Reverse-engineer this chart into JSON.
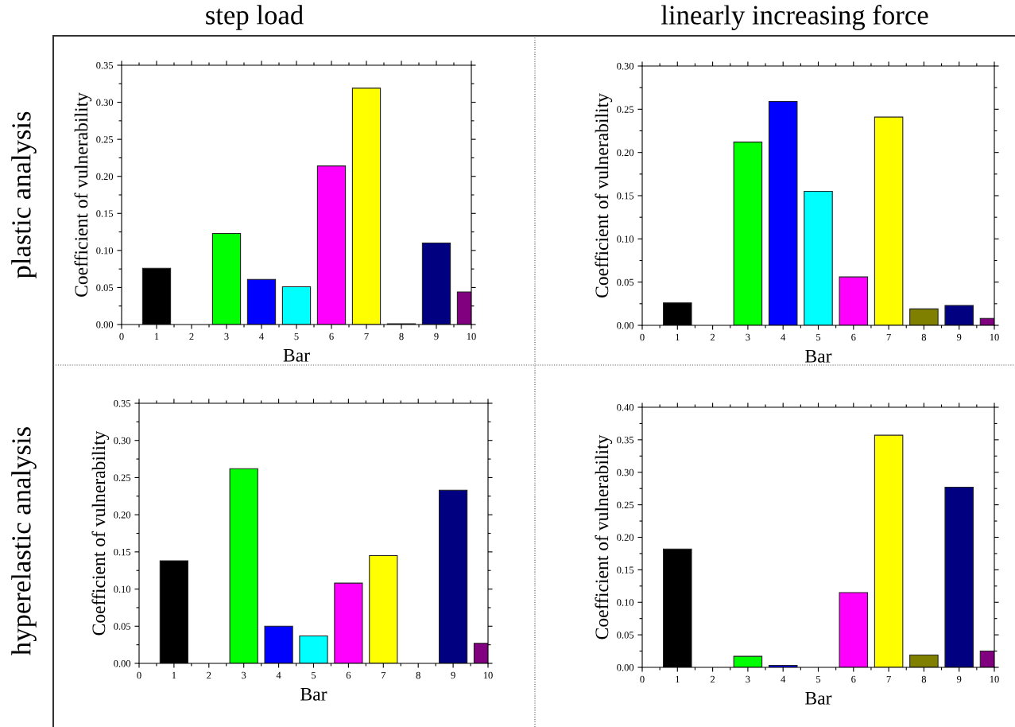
{
  "chart_data": [
    {
      "type": "bar",
      "title": "step load",
      "annotations": [
        "plastic analysis"
      ],
      "xlabel": "Bar",
      "ylabel": "Coefficient of vulnerability",
      "x": [
        1,
        2,
        3,
        4,
        5,
        6,
        7,
        8,
        9,
        10
      ],
      "values": [
        0.076,
        null,
        0.123,
        0.061,
        0.051,
        0.214,
        0.319,
        0.001,
        0.11,
        0.044
      ],
      "colors": [
        "#000000",
        "#ff0000",
        "#00ff00",
        "#0000ff",
        "#00ffff",
        "#ff00ff",
        "#ffff00",
        "#808000",
        "#000080",
        "#800080"
      ],
      "xlim": [
        0,
        10
      ],
      "xticks": [
        0,
        1,
        2,
        3,
        4,
        5,
        6,
        7,
        8,
        9,
        10
      ],
      "ylim": [
        0,
        0.35
      ],
      "yticks": [
        {
          "value": 0,
          "label": "0.00"
        },
        {
          "value": 0.05,
          "label": "0.05"
        },
        {
          "value": 0.1,
          "label": "0.10"
        },
        {
          "value": 0.15,
          "label": "0.15"
        },
        {
          "value": 0.2,
          "label": "0.20"
        },
        {
          "value": 0.25,
          "label": "0.25"
        },
        {
          "value": 0.3,
          "label": "0.30"
        },
        {
          "value": 0.35,
          "label": "0.35"
        }
      ],
      "grid": false,
      "legend": false
    },
    {
      "type": "bar",
      "title": "linearly increasing force",
      "xlabel": "Bar",
      "ylabel": "Coefficient of vulnerability",
      "x": [
        1,
        2,
        3,
        4,
        5,
        6,
        7,
        8,
        9,
        10
      ],
      "values": [
        0.026,
        null,
        0.212,
        0.259,
        0.155,
        0.056,
        0.241,
        0.019,
        0.023,
        0.008
      ],
      "colors": [
        "#000000",
        "#ff0000",
        "#00ff00",
        "#0000ff",
        "#00ffff",
        "#ff00ff",
        "#ffff00",
        "#808000",
        "#000080",
        "#800080"
      ],
      "xlim": [
        0,
        10
      ],
      "xticks": [
        0,
        1,
        2,
        3,
        4,
        5,
        6,
        7,
        8,
        9,
        10
      ],
      "ylim": [
        0,
        0.3
      ],
      "yticks": [
        {
          "value": 0,
          "label": "0.00"
        },
        {
          "value": 0.05,
          "label": "0.05"
        },
        {
          "value": 0.1,
          "label": "0.10"
        },
        {
          "value": 0.15,
          "label": "0.15"
        },
        {
          "value": 0.2,
          "label": "0.20"
        },
        {
          "value": 0.25,
          "label": "0.25"
        },
        {
          "value": 0.3,
          "label": "0.30"
        }
      ],
      "grid": false,
      "legend": false
    },
    {
      "type": "bar",
      "annotations": [
        "hyperelastic analysis"
      ],
      "xlabel": "Bar",
      "ylabel": "Coefficient of vulnerability",
      "x": [
        1,
        2,
        3,
        4,
        5,
        6,
        7,
        8,
        9,
        10
      ],
      "values": [
        0.138,
        null,
        0.262,
        0.05,
        0.037,
        0.108,
        0.145,
        null,
        0.233,
        0.027
      ],
      "colors": [
        "#000000",
        "#ff0000",
        "#00ff00",
        "#0000ff",
        "#00ffff",
        "#ff00ff",
        "#ffff00",
        "#808000",
        "#000080",
        "#800080"
      ],
      "xlim": [
        0,
        10
      ],
      "xticks": [
        0,
        1,
        2,
        3,
        4,
        5,
        6,
        7,
        8,
        9,
        10
      ],
      "ylim": [
        0,
        0.35
      ],
      "yticks": [
        {
          "value": 0,
          "label": "0.00"
        },
        {
          "value": 0.05,
          "label": "0.05"
        },
        {
          "value": 0.1,
          "label": "0.10"
        },
        {
          "value": 0.15,
          "label": "0.15"
        },
        {
          "value": 0.2,
          "label": "0.20"
        },
        {
          "value": 0.25,
          "label": "0.25"
        },
        {
          "value": 0.3,
          "label": "0.30"
        },
        {
          "value": 0.35,
          "label": "0.35"
        }
      ],
      "grid": false,
      "legend": false
    },
    {
      "type": "bar",
      "xlabel": "Bar",
      "ylabel": "Coefficient of vulnerability",
      "x": [
        1,
        2,
        3,
        4,
        5,
        6,
        7,
        8,
        9,
        10
      ],
      "values": [
        0.182,
        null,
        0.017,
        0.003,
        null,
        0.115,
        0.357,
        0.019,
        0.277,
        0.025
      ],
      "colors": [
        "#000000",
        "#ff0000",
        "#00ff00",
        "#0000ff",
        "#00ffff",
        "#ff00ff",
        "#ffff00",
        "#808000",
        "#000080",
        "#800080"
      ],
      "xlim": [
        0,
        10
      ],
      "xticks": [
        0,
        1,
        2,
        3,
        4,
        5,
        6,
        7,
        8,
        9,
        10
      ],
      "ylim": [
        0,
        0.4
      ],
      "yticks": [
        {
          "value": 0,
          "label": "0.00"
        },
        {
          "value": 0.05,
          "label": "0.05"
        },
        {
          "value": 0.1,
          "label": "0.10"
        },
        {
          "value": 0.15,
          "label": "0.15"
        },
        {
          "value": 0.2,
          "label": "0.20"
        },
        {
          "value": 0.25,
          "label": "0.25"
        },
        {
          "value": 0.3,
          "label": "0.30"
        },
        {
          "value": 0.35,
          "label": "0.35"
        },
        {
          "value": 0.4,
          "label": "0.40"
        }
      ],
      "grid": false,
      "legend": false
    }
  ]
}
